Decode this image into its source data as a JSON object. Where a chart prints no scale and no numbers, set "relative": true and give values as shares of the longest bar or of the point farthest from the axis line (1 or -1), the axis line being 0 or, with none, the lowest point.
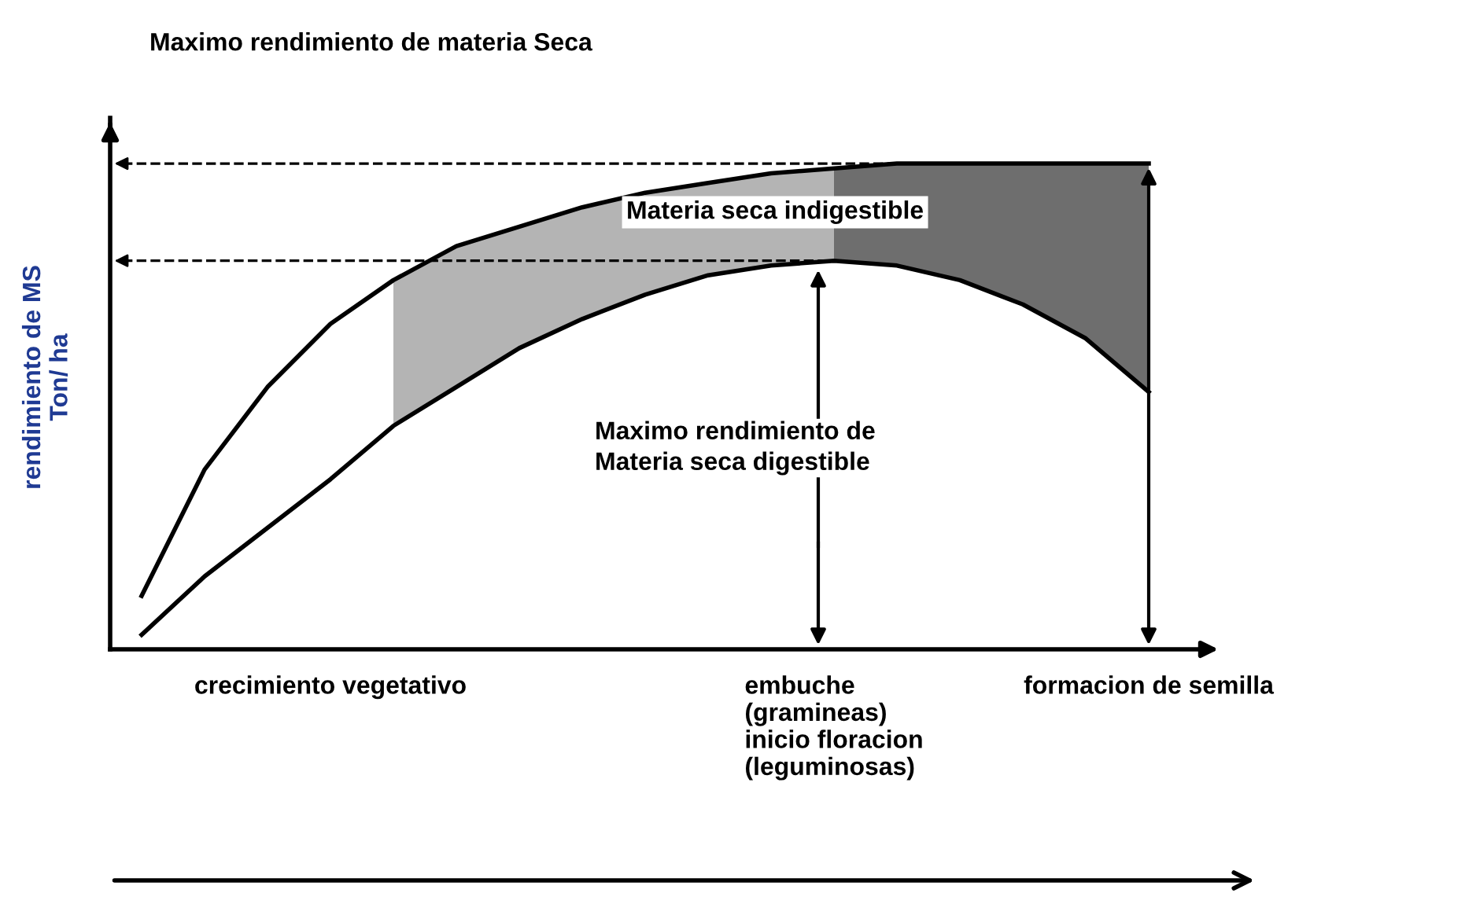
{
  "chart_data": {
    "type": "line",
    "relative": true,
    "ylabel": "rendimiento de MS\nTon/ ha",
    "categories": [
      null,
      null,
      null,
      "crecimiento vegetativo",
      null,
      null,
      null,
      null,
      null,
      null,
      null,
      "embuche\n(gramineas)\ninicio floracion\n(leguminosas)",
      null,
      null,
      null,
      null,
      "formacion de semilla"
    ],
    "series": [
      {
        "color": "#000000",
        "values": [
          0.11,
          0.37,
          0.54,
          0.67,
          0.76,
          0.83,
          0.87,
          0.91,
          0.94,
          0.96,
          0.98,
          0.99,
          1.0,
          1.0,
          1.0,
          1.0,
          1.0
        ],
        "lower": [
          null,
          null,
          null,
          null,
          null,
          null,
          null,
          null,
          null,
          null,
          null,
          0.8,
          0.79,
          0.76,
          0.71,
          0.64,
          0.53
        ],
        "upper": [
          null,
          null,
          null,
          null,
          null,
          null,
          null,
          null,
          null,
          null,
          null,
          0.99,
          1.0,
          1.0,
          1.0,
          1.0,
          1.0
        ],
        "colors": [
          null,
          null,
          null,
          null,
          null,
          null,
          null,
          null,
          null,
          null,
          null,
          "#6e6e6e",
          "#6e6e6e",
          "#6e6e6e",
          "#6e6e6e",
          "#6e6e6e",
          "#6e6e6e"
        ]
      },
      {
        "color": "#000000",
        "values": [
          0.03,
          0.15,
          0.25,
          0.35,
          0.46,
          0.54,
          0.62,
          0.68,
          0.73,
          0.77,
          0.79,
          0.8,
          0.79,
          0.76,
          0.71,
          0.64,
          0.53
        ],
        "lower": [
          null,
          null,
          null,
          null,
          0.46,
          0.54,
          0.62,
          0.68,
          0.73,
          0.77,
          0.79,
          0.8,
          null,
          null,
          null,
          null,
          null
        ],
        "upper": [
          null,
          null,
          null,
          null,
          0.76,
          0.83,
          0.87,
          0.91,
          0.94,
          0.96,
          0.98,
          0.99,
          null,
          null,
          null,
          null,
          null
        ],
        "colors": [
          null,
          null,
          null,
          null,
          "#b4b4b4",
          "#b4b4b4",
          "#b4b4b4",
          "#b4b4b4",
          "#b4b4b4",
          "#b4b4b4",
          "#b4b4b4",
          "#b4b4b4",
          null,
          null,
          null,
          null,
          null
        ]
      }
    ],
    "ref_lines": [
      {
        "axis": "y",
        "value": 1.0,
        "line_style": "dashed",
        "color": "#000000"
      },
      {
        "axis": "y",
        "value": 0.8,
        "line_style": "dashed",
        "color": "#000000"
      }
    ],
    "annotations": [
      "Maximo rendimiento de materia Seca",
      "Materia seca indigestible",
      "Maximo rendimiento de\nMateria seca digestible"
    ],
    "grid": false,
    "legend": false,
    "marker": "none",
    "line_style": "solid"
  }
}
